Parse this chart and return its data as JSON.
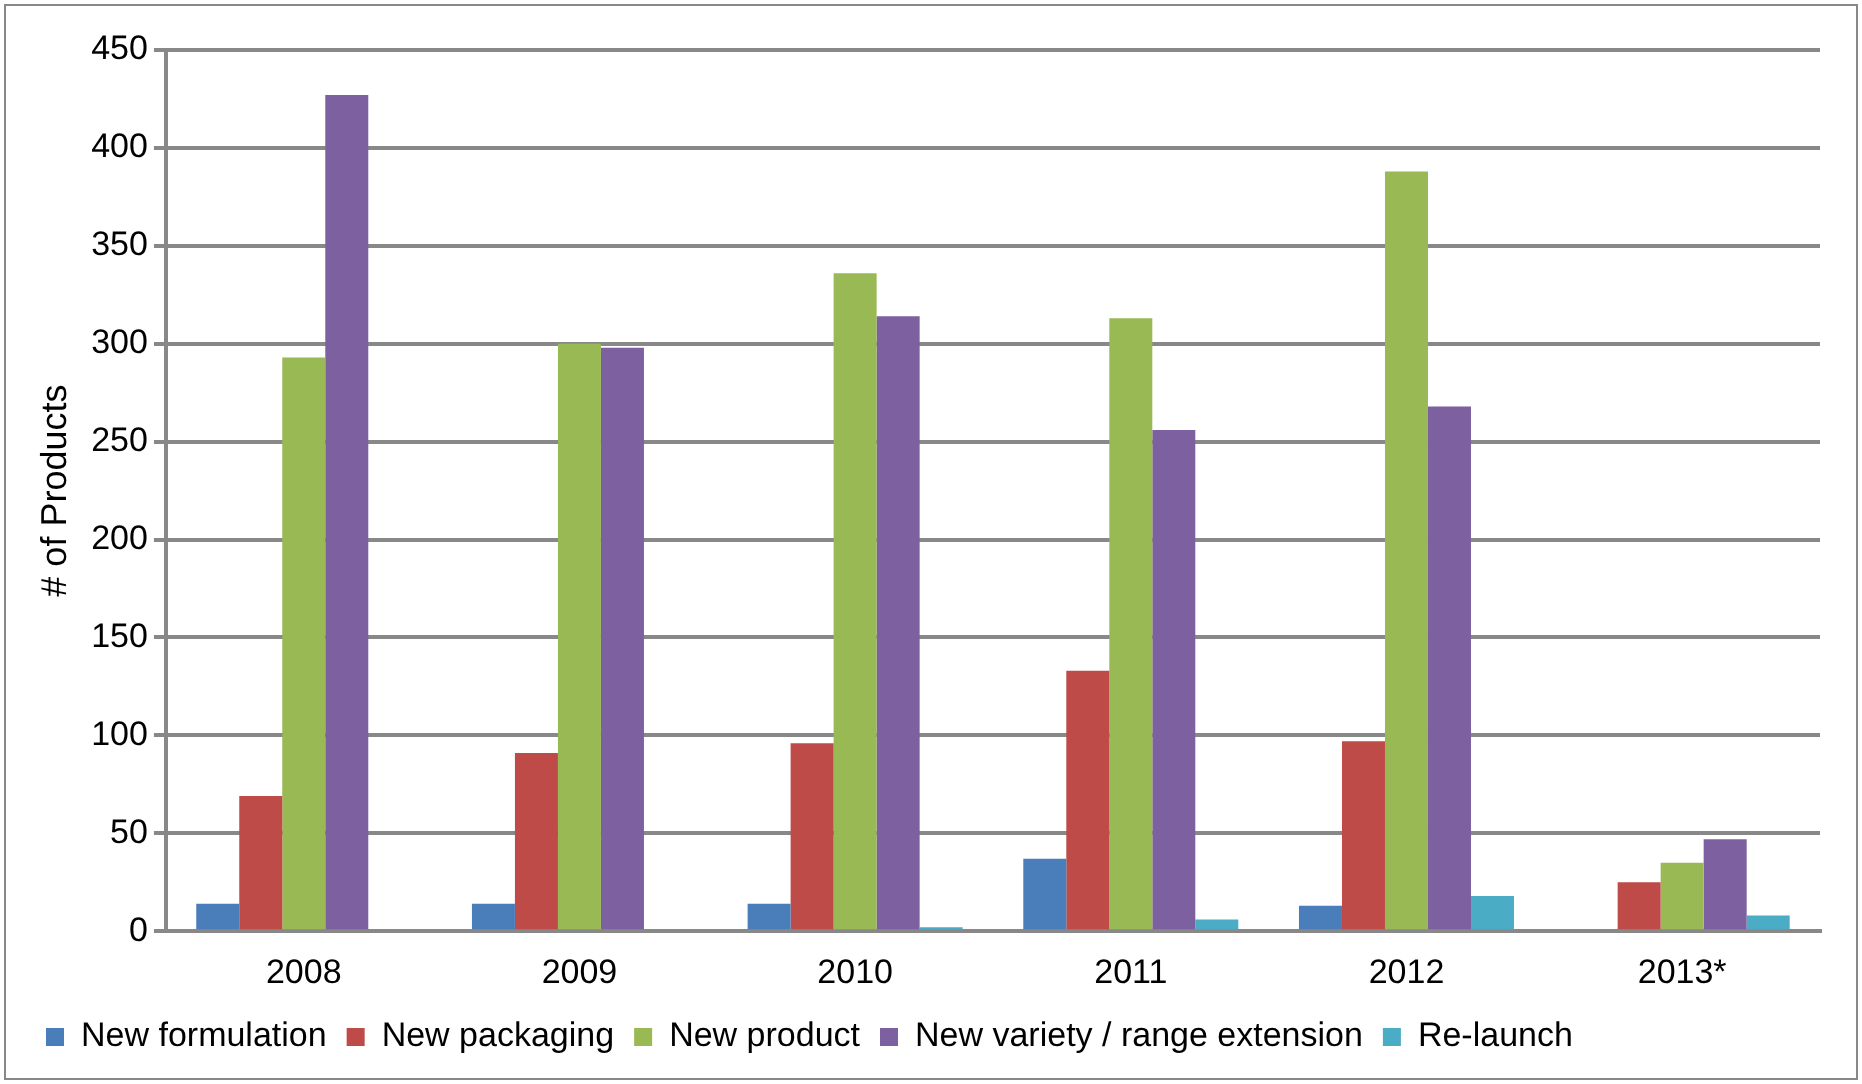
{
  "chart_data": {
    "type": "bar",
    "ylabel": "# of Products",
    "categories": [
      "2008",
      "2009",
      "2010",
      "2011",
      "2012",
      "2013*"
    ],
    "series": [
      {
        "name": "New formulation",
        "color": "#4a7ebb",
        "values": [
          14,
          14,
          14,
          37,
          13,
          0
        ]
      },
      {
        "name": "New packaging",
        "color": "#be4b48",
        "values": [
          69,
          91,
          96,
          133,
          97,
          25
        ]
      },
      {
        "name": "New product",
        "color": "#98b954",
        "values": [
          293,
          300,
          336,
          313,
          388,
          35
        ]
      },
      {
        "name": "New variety / range extension",
        "color": "#7d60a0",
        "values": [
          427,
          298,
          314,
          256,
          268,
          47
        ]
      },
      {
        "name": "Re-launch",
        "color": "#4bacc6",
        "values": [
          0,
          0,
          2,
          6,
          18,
          8
        ]
      }
    ],
    "ylim": [
      0,
      450
    ],
    "yticks": [
      0,
      50,
      100,
      150,
      200,
      250,
      300,
      350,
      400,
      450
    ],
    "grid": "y",
    "legend": "bottom"
  }
}
